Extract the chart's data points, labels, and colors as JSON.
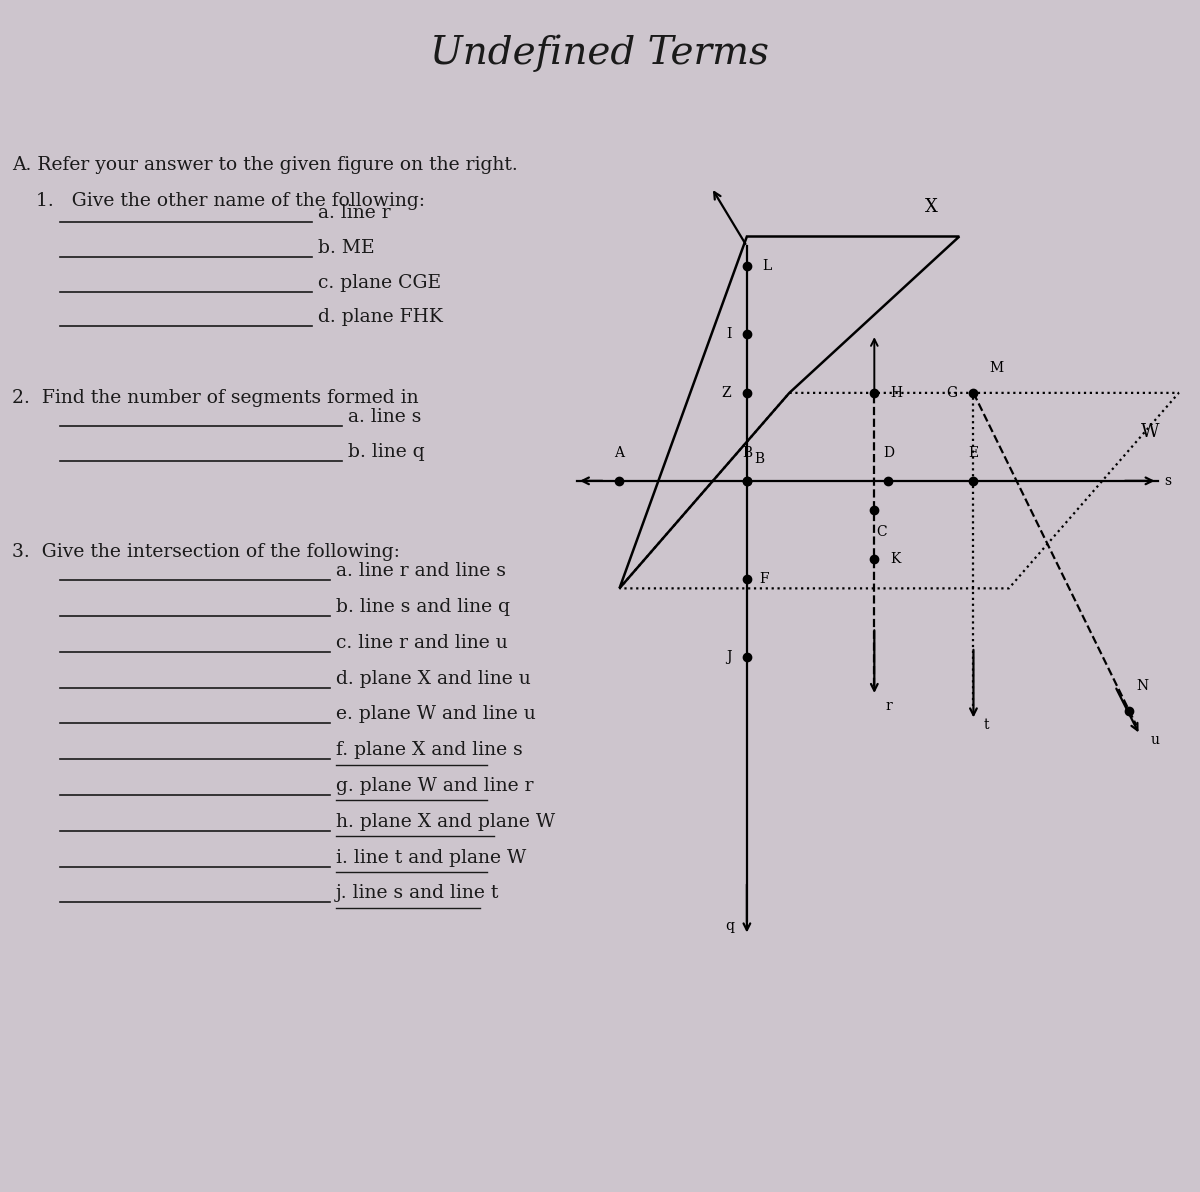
{
  "title": "Undefined Terms",
  "bg_color": "#cdc5cd",
  "text_color": "#1a1a1a",
  "section_A": "A. Refer your answer to the given figure on the right.",
  "q1_header": "1.   Give the other name of the following:",
  "q1_items": [
    "a. line r",
    "b. ME",
    "c. plane CGE",
    "d. plane FHK"
  ],
  "q2_header": "2.  Find the number of segments formed in",
  "q2_items": [
    "a. line s",
    "b. line q"
  ],
  "q3_header": "3.  Give the intersection of the following:",
  "q3_items": [
    "a. line r and line s",
    "b. line s and line q",
    "c. line r and line u",
    "d. plane X and line u",
    "e. plane W and line u",
    "f. plane X and line s",
    "g. plane W and line r",
    "h. plane X and plane W",
    "i. line t and plane W",
    "j. line s and line t"
  ],
  "q3_underlined": [
    5,
    6,
    7,
    8,
    9
  ]
}
